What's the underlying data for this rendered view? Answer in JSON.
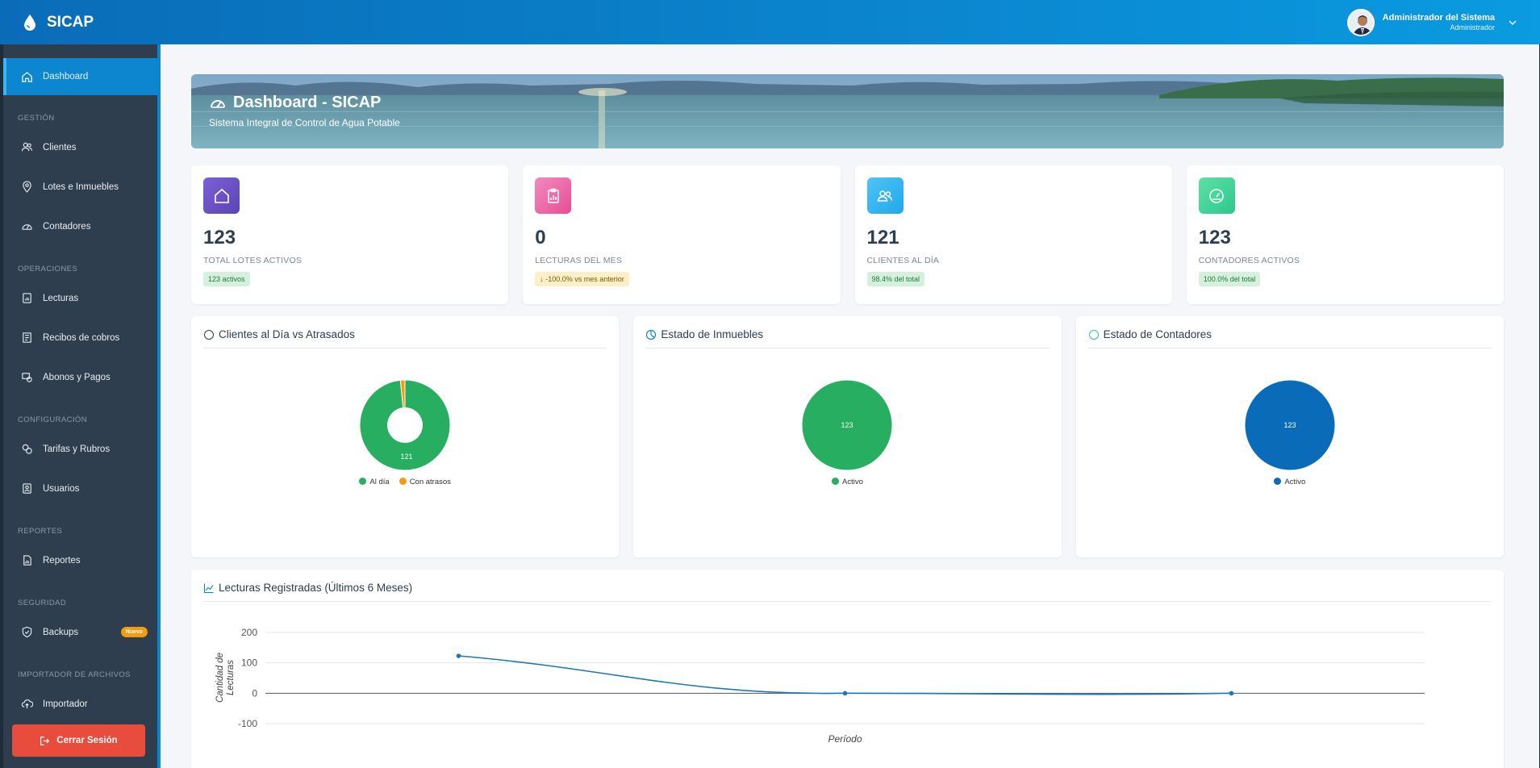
{
  "app": {
    "title": "SICAP"
  },
  "user": {
    "name": "Administrador del Sistema",
    "role": "Administrador"
  },
  "sidebar": {
    "dashboard": "Dashboard",
    "sections": {
      "gestion": "GESTIÓN",
      "operaciones": "OPERACIONES",
      "configuracion": "CONFIGURACIÓN",
      "reportes": "REPORTES",
      "seguridad": "SEGURIDAD",
      "importador": "IMPORTADOR DE ARCHIVOS"
    },
    "items": {
      "clientes": "Clientes",
      "lotes": "Lotes e Inmuebles",
      "contadores": "Contadores",
      "lecturas": "Lecturas",
      "recibos": "Recibos de cobros",
      "abonos": "Abonos y Pagos",
      "tarifas": "Tarifas y Rubros",
      "usuarios": "Usuarios",
      "reportes": "Reportes",
      "backups": "Backups",
      "backups_badge": "Nuevo",
      "importador": "Importador"
    },
    "logout": "Cerrar Sesión"
  },
  "hero": {
    "title": "Dashboard - SICAP",
    "subtitle": "Sistema Integral de Control de Agua Potable"
  },
  "cards": [
    {
      "value": "123",
      "label": "TOTAL LOTES ACTIVOS",
      "pill": "123 activos",
      "color": "#6f52c8"
    },
    {
      "value": "0",
      "label": "LECTURAS DEL MES",
      "pill": "↓ -100.0% vs mes anterior",
      "color": "#ef5da8"
    },
    {
      "value": "121",
      "label": "CLIENTES AL DÍA",
      "pill": "98.4% del total",
      "color": "#2fb7f0"
    },
    {
      "value": "123",
      "label": "CONTADORES ACTIVOS",
      "pill": "100.0% del total",
      "color": "#37d896"
    }
  ],
  "panels": {
    "clientes": {
      "title": "Clientes al Día vs Atrasados"
    },
    "inmuebles": {
      "title": "Estado de Inmuebles"
    },
    "contadores": {
      "title": "Estado de Contadores"
    }
  },
  "line_panel": {
    "title": "Lecturas Registradas (Últimos 6 Meses)"
  },
  "chart_data": [
    {
      "type": "pie",
      "variant": "doughnut",
      "categories": [
        "Al día",
        "Con atrasos"
      ],
      "values": [
        121,
        2
      ],
      "colors": [
        "#27ae60",
        "#f39c12"
      ],
      "data_labels": [
        "121",
        ""
      ],
      "legend": "bottom"
    },
    {
      "type": "pie",
      "categories": [
        "Activo"
      ],
      "values": [
        123
      ],
      "colors": [
        "#27ae60"
      ],
      "data_labels": [
        "123"
      ],
      "legend": "bottom"
    },
    {
      "type": "pie",
      "categories": [
        "Activo"
      ],
      "values": [
        123
      ],
      "colors": [
        "#0a6cb8"
      ],
      "data_labels": [
        "123"
      ],
      "legend": "bottom"
    },
    {
      "type": "line",
      "xlabel": "Período",
      "ylabel": "Cantidad de Lecturas",
      "ylim": [
        -100,
        200
      ],
      "yticks": [
        "200",
        "100",
        "0",
        "-100"
      ],
      "values": [
        123,
        0,
        0
      ],
      "color": "#1f77b4",
      "grid": true
    }
  ]
}
